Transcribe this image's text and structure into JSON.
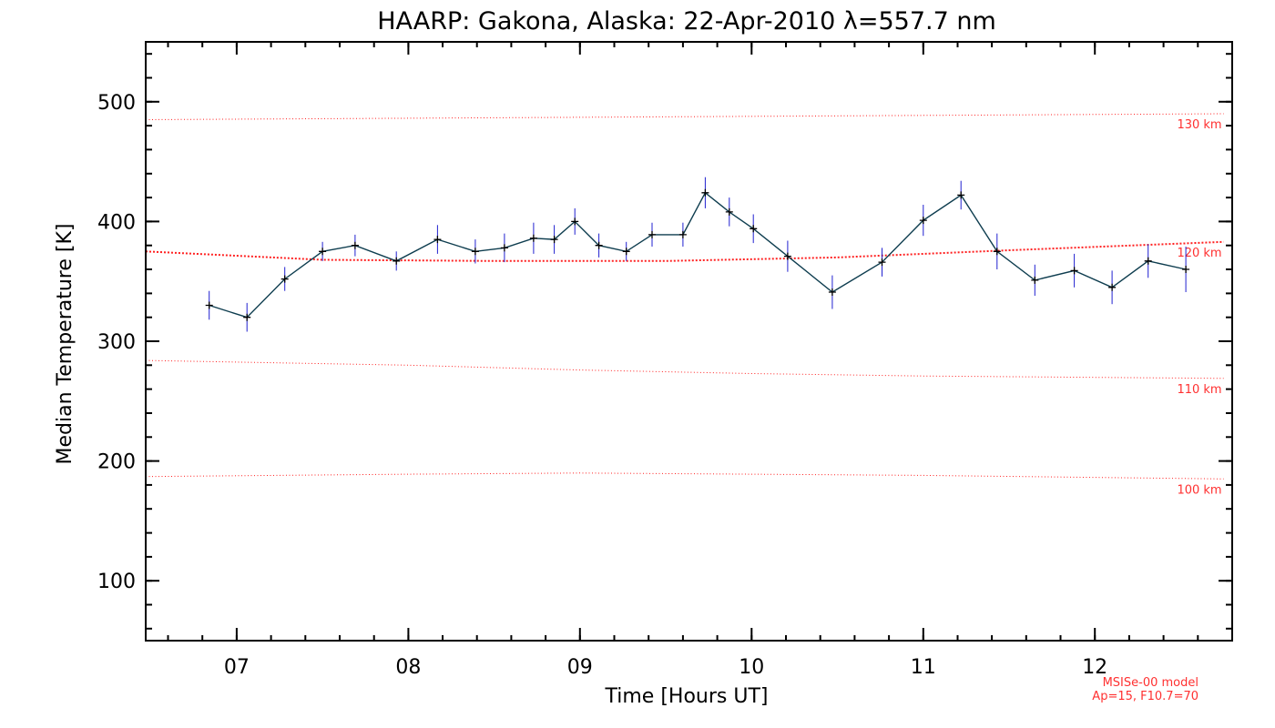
{
  "chart_data": {
    "type": "line",
    "title": "HAARP: Gakona,  Alaska: 22-Apr-2010 λ=557.7 nm",
    "xlabel": "Time [Hours UT]",
    "ylabel": "Median Temperature [K]",
    "xlim": [
      6.47,
      12.8
    ],
    "ylim": [
      50,
      550
    ],
    "x_ticks": [
      7,
      8,
      9,
      10,
      11,
      12
    ],
    "x_tick_labels": [
      "07",
      "08",
      "09",
      "10",
      "11",
      "12"
    ],
    "y_ticks": [
      100,
      200,
      300,
      400,
      500
    ],
    "y_tick_labels": [
      "100",
      "200",
      "300",
      "400",
      "500"
    ],
    "grid": false,
    "colors": {
      "data_line": "#0e3d4f",
      "error_bar": "#2020d0",
      "marker": "#000000",
      "model_line": "#ff2020"
    },
    "series": [
      {
        "x": [
          6.84,
          7.06,
          7.28,
          7.5,
          7.69,
          7.93,
          8.17,
          8.39,
          8.56,
          8.73,
          8.85,
          8.97,
          9.11,
          9.27,
          9.42,
          9.6,
          9.73,
          9.87,
          10.01,
          10.21,
          10.47,
          10.76,
          11.0,
          11.22,
          11.43,
          11.65,
          11.88,
          12.1,
          12.31,
          12.53
        ],
        "y": [
          330,
          320,
          352,
          375,
          380,
          367,
          385,
          375,
          378,
          386,
          385,
          400,
          380,
          375,
          389,
          389,
          424,
          408,
          394,
          371,
          341,
          366,
          401,
          422,
          375,
          351,
          359,
          345,
          367,
          360
        ],
        "error": [
          12,
          12,
          10,
          8,
          9,
          8,
          12,
          10,
          12,
          13,
          12,
          11,
          10,
          8,
          10,
          10,
          13,
          12,
          12,
          13,
          14,
          12,
          13,
          12,
          15,
          13,
          14,
          14,
          14,
          19
        ]
      }
    ],
    "model_lines": [
      {
        "label": "130 km",
        "x": [
          6.47,
          12.75
        ],
        "y": [
          485,
          490
        ]
      },
      {
        "label": "120 km",
        "x": [
          6.47,
          7.5,
          8.5,
          9.5,
          10.5,
          11.5,
          12.75
        ],
        "y": [
          375,
          368,
          367,
          367,
          370,
          376,
          383
        ]
      },
      {
        "label": "110 km",
        "x": [
          6.47,
          8.0,
          9.0,
          10.0,
          11.0,
          12.75
        ],
        "y": [
          284,
          280,
          276,
          273,
          271,
          269
        ]
      },
      {
        "label": "100 km",
        "x": [
          6.47,
          8.0,
          9.0,
          10.0,
          11.0,
          12.75
        ],
        "y": [
          187,
          189,
          190,
          189,
          188,
          185
        ]
      }
    ],
    "model_note": [
      "MSISe-00 model",
      "Ap=15, F10.7=70"
    ]
  }
}
